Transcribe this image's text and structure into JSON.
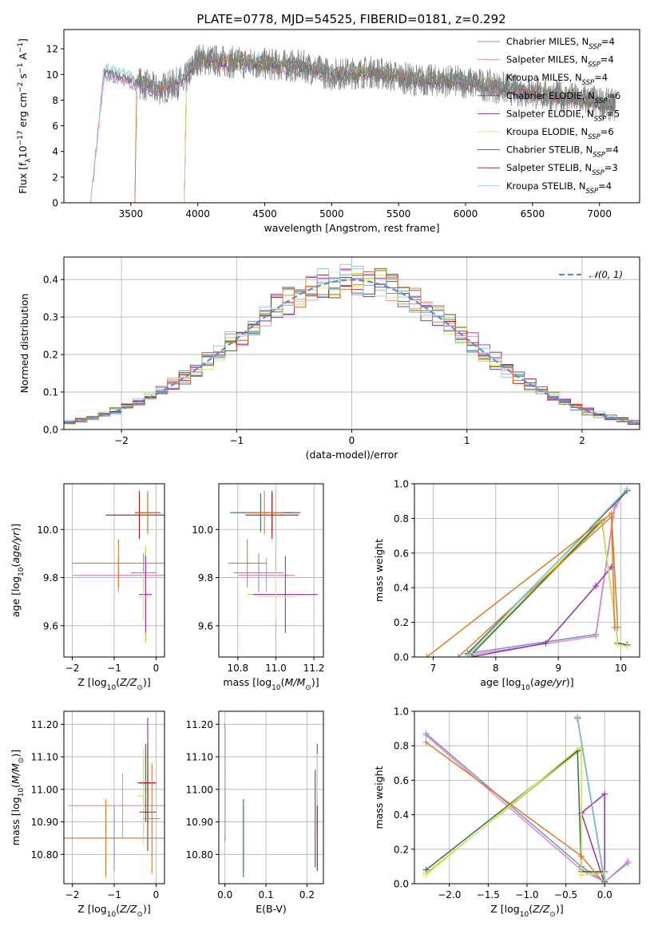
{
  "colors": {
    "series": [
      "#6f93d9",
      "#ee82b4",
      "#b8c93a",
      "#2d6e58",
      "#9a2bb8",
      "#e2e86b",
      "#555555",
      "#aa1515",
      "#7fd1e6"
    ],
    "bright_for_markers": [
      "#6f93d9",
      "#ee82b4",
      "#b8c93a",
      "#2d6e58",
      "#9a2bb8",
      "#e2e86b",
      "#555555",
      "#aa1515",
      "#7fd1e6"
    ],
    "orange": "#e07a28",
    "gaussian": "#5b8ad6"
  },
  "legend": [
    {
      "label": "Chabrier MILES, N",
      "sub": "SSP",
      "tail": "=4"
    },
    {
      "label": "Salpeter MILES, N",
      "sub": "SSP",
      "tail": "=4"
    },
    {
      "label": "Kroupa MILES, N",
      "sub": "SSP",
      "tail": "=4"
    },
    {
      "label": "Chabrier ELODIE, N",
      "sub": "SSP",
      "tail": "=6"
    },
    {
      "label": "Salpeter ELODIE, N",
      "sub": "SSP",
      "tail": "=5"
    },
    {
      "label": "Kroupa ELODIE, N",
      "sub": "SSP",
      "tail": "=6"
    },
    {
      "label": "Chabrier STELIB, N",
      "sub": "SSP",
      "tail": "=4"
    },
    {
      "label": "Salpeter STELIB, N",
      "sub": "SSP",
      "tail": "=3"
    },
    {
      "label": "Kroupa STELIB, N",
      "sub": "SSP",
      "tail": "=4"
    }
  ],
  "chart_data": [
    {
      "id": "spectrum",
      "type": "line",
      "title": "PLATE=0778, MJD=54525, FIBERID=0181, z=0.292",
      "xlabel": "wavelength [Angstrom, rest frame]",
      "ylabel": "Flux [f",
      "xlim": [
        3000,
        7300
      ],
      "ylim": [
        0,
        13.5
      ],
      "xticks": [
        3500,
        4000,
        4500,
        5000,
        5500,
        6000,
        6500,
        7000
      ],
      "yticks": [
        0,
        2,
        4,
        6,
        8,
        10,
        12
      ],
      "grid": false,
      "legend_position": "top-right",
      "data_envelope": {
        "x": [
          3200,
          3300,
          3500,
          3700,
          3900,
          4000,
          4200,
          4500,
          4800,
          5000,
          5300,
          5600,
          6000,
          6300,
          6600,
          6900,
          7100
        ],
        "y": [
          0.0,
          10.2,
          9.6,
          8.8,
          9.5,
          11.2,
          11.0,
          10.8,
          10.6,
          10.0,
          10.2,
          9.6,
          9.4,
          8.9,
          8.4,
          8.0,
          7.6
        ]
      }
    },
    {
      "id": "residuals",
      "type": "histogram",
      "xlabel": "(data-model)/error",
      "ylabel": "Normed distribution",
      "xlim": [
        -2.5,
        2.5
      ],
      "ylim": [
        0,
        0.46
      ],
      "xticks": [
        -2,
        -1,
        0,
        1,
        2
      ],
      "yticks": [
        0.0,
        0.1,
        0.2,
        0.3,
        0.4
      ],
      "grid": true,
      "legend": "𝒩(0, 1)",
      "legend_position": "top-right"
    },
    {
      "id": "age_vs_Z",
      "type": "errorbar",
      "xlabel": "Z [log",
      "ylabel": "age  [log",
      "xlim": [
        -2.2,
        0.2
      ],
      "ylim": [
        9.47,
        10.19
      ],
      "xticks": [
        -2,
        -1,
        0
      ],
      "yticks": [
        9.6,
        9.8,
        10.0
      ],
      "grid": true,
      "points": [
        {
          "x": -0.3,
          "xerr": 0.3,
          "y": 9.82,
          "yerr": 0.08
        },
        {
          "x": -0.9,
          "xerr": 1.1,
          "y": 9.81,
          "yerr": 0.07
        },
        {
          "x": -0.25,
          "xerr": 0.15,
          "y": 9.73,
          "yerr": 0.2
        },
        {
          "x": -0.2,
          "xerr": 0.3,
          "y": 10.07,
          "yerr": 0.08
        },
        {
          "x": -0.25,
          "xerr": 0.15,
          "y": 9.73,
          "yerr": 0.16
        },
        {
          "x": -0.3,
          "xerr": 0.15,
          "y": 9.72,
          "yerr": 0.1
        },
        {
          "x": -0.2,
          "xerr": 0.3,
          "y": 10.07,
          "yerr": 0.08
        },
        {
          "x": -0.4,
          "xerr": 0.8,
          "y": 10.06,
          "yerr": 0.1
        },
        {
          "x": -0.9,
          "xerr": 1.1,
          "y": 9.86,
          "yerr": 0.1
        },
        {
          "x": -0.2,
          "xerr": 0.3,
          "y": 10.07,
          "yerr": 0.09
        }
      ]
    },
    {
      "id": "age_vs_mass",
      "type": "errorbar",
      "xlabel": "mass [log",
      "ylabel": "",
      "xlim": [
        10.7,
        11.25
      ],
      "ylim": [
        9.47,
        10.19
      ],
      "xticks": [
        10.8,
        11.0,
        11.2
      ],
      "yticks": [
        9.6,
        9.8,
        10.0
      ],
      "grid": true,
      "points": [
        {
          "x": 10.91,
          "xerr": 0.13,
          "y": 9.82,
          "yerr": 0.08
        },
        {
          "x": 10.95,
          "xerr": 0.15,
          "y": 9.81,
          "yerr": 0.07
        },
        {
          "x": 11.0,
          "xerr": 0.15,
          "y": 9.73,
          "yerr": 0.2
        },
        {
          "x": 10.92,
          "xerr": 0.16,
          "y": 10.07,
          "yerr": 0.08
        },
        {
          "x": 11.05,
          "xerr": 0.17,
          "y": 9.73,
          "yerr": 0.16
        },
        {
          "x": 11.0,
          "xerr": 0.1,
          "y": 9.72,
          "yerr": 0.1
        },
        {
          "x": 10.98,
          "xerr": 0.15,
          "y": 10.07,
          "yerr": 0.08
        },
        {
          "x": 10.98,
          "xerr": 0.14,
          "y": 10.06,
          "yerr": 0.1
        },
        {
          "x": 10.85,
          "xerr": 0.1,
          "y": 9.86,
          "yerr": 0.1
        },
        {
          "x": 10.94,
          "xerr": 0.1,
          "y": 10.07,
          "yerr": 0.09
        }
      ]
    },
    {
      "id": "weight_vs_age",
      "type": "line",
      "xlabel": "age  [log",
      "ylabel": "mass weight",
      "xlim": [
        6.7,
        10.3
      ],
      "ylim": [
        0,
        1.0
      ],
      "xticks": [
        7,
        8,
        9,
        10
      ],
      "yticks": [
        0.0,
        0.2,
        0.4,
        0.6,
        0.8,
        1.0
      ],
      "grid": true,
      "series": [
        {
          "x": [
            7.55,
            9.6,
            9.9,
            10.1
          ],
          "y": [
            0.02,
            0.13,
            0.87,
            0.96
          ]
        },
        {
          "x": [
            7.55,
            9.6,
            9.9,
            10.1
          ],
          "y": [
            0.01,
            0.12,
            0.86,
            0.97
          ]
        },
        {
          "x": [
            7.6,
            9.7,
            9.95,
            10.1
          ],
          "y": [
            0.01,
            0.78,
            0.08,
            0.07
          ]
        },
        {
          "x": [
            7.6,
            9.7,
            9.95,
            10.1
          ],
          "y": [
            0.01,
            0.79,
            0.08,
            0.07
          ]
        },
        {
          "x": [
            7.6,
            8.8,
            9.6,
            9.85
          ],
          "y": [
            0.0,
            0.08,
            0.41,
            0.52
          ]
        },
        {
          "x": [
            7.6,
            9.7,
            9.95,
            10.1
          ],
          "y": [
            0.02,
            0.8,
            0.07,
            0.06
          ]
        },
        {
          "x": [
            7.55,
            10.1
          ],
          "y": [
            0.02,
            0.96
          ]
        },
        {
          "x": [
            7.4,
            9.85,
            9.9
          ],
          "y": [
            0.0,
            0.81,
            0.17
          ]
        },
        {
          "x": [
            7.55,
            10.1
          ],
          "y": [
            0.01,
            0.97
          ]
        },
        {
          "x": [
            6.9,
            9.85,
            9.95
          ],
          "y": [
            0.0,
            0.83,
            0.17
          ]
        }
      ]
    },
    {
      "id": "mass_vs_Z",
      "type": "errorbar",
      "xlabel": "Z [log",
      "ylabel": "mass [log",
      "xlim": [
        -2.2,
        0.2
      ],
      "ylim": [
        10.71,
        11.24
      ],
      "xticks": [
        -2,
        -1,
        0
      ],
      "yticks": [
        10.8,
        10.9,
        11.0,
        11.1,
        11.2
      ],
      "grid": true,
      "points": [
        {
          "x": -1.0,
          "xerr": 1.2,
          "y": 10.85,
          "yerr": 0.1
        },
        {
          "x": -0.8,
          "xerr": 1.3,
          "y": 10.95,
          "yerr": 0.1
        },
        {
          "x": -0.3,
          "xerr": 0.15,
          "y": 10.98,
          "yerr": 0.12
        },
        {
          "x": -0.25,
          "xerr": 0.2,
          "y": 11.02,
          "yerr": 0.12
        },
        {
          "x": -0.2,
          "xerr": 0.2,
          "y": 11.02,
          "yerr": 0.2
        },
        {
          "x": -0.3,
          "xerr": 0.15,
          "y": 10.98,
          "yerr": 0.15
        },
        {
          "x": -0.2,
          "xerr": 0.2,
          "y": 10.93,
          "yerr": 0.12
        },
        {
          "x": -0.2,
          "xerr": 0.2,
          "y": 11.02,
          "yerr": 0.12
        },
        {
          "x": -1.2,
          "xerr": 1.0,
          "y": 10.85,
          "yerr": 0.12
        },
        {
          "x": -0.1,
          "xerr": 0.2,
          "y": 10.91,
          "yerr": 0.17
        }
      ]
    },
    {
      "id": "mass_vs_ebv",
      "type": "errorbar",
      "xlabel": "E(B-V)",
      "ylabel": "",
      "xlim": [
        -0.015,
        0.24
      ],
      "ylim": [
        10.71,
        11.24
      ],
      "xticks": [
        0.0,
        0.1,
        0.2
      ],
      "yticks": [
        10.8,
        10.9,
        11.0,
        11.1,
        11.2
      ],
      "grid": true,
      "points": [
        {
          "x": 0.0,
          "y": 11.02,
          "yerr": 0.18
        },
        {
          "x": 0.0,
          "y": 11.02,
          "yerr": 0.17
        },
        {
          "x": 0.045,
          "y": 10.85,
          "yerr": 0.1
        },
        {
          "x": 0.045,
          "y": 10.85,
          "yerr": 0.12
        },
        {
          "x": 0.225,
          "y": 11.0,
          "yerr": 0.14
        },
        {
          "x": 0.225,
          "y": 10.93,
          "yerr": 0.18
        },
        {
          "x": 0.22,
          "y": 10.91,
          "yerr": 0.15
        },
        {
          "x": 0.225,
          "y": 10.85,
          "yerr": 0.1
        }
      ]
    },
    {
      "id": "weight_vs_Z",
      "type": "line",
      "xlabel": "Z [log",
      "ylabel": "mass weight",
      "xlim": [
        -2.45,
        0.45
      ],
      "ylim": [
        0,
        1.0
      ],
      "xticks": [
        -2.0,
        -1.5,
        -1.0,
        -0.5,
        0.0
      ],
      "yticks": [
        0.0,
        0.2,
        0.4,
        0.6,
        0.8,
        1.0
      ],
      "grid": true,
      "series": [
        {
          "x": [
            -2.3,
            -0.3,
            0.0,
            0.3
          ],
          "y": [
            0.87,
            0.1,
            0.01,
            0.12
          ]
        },
        {
          "x": [
            -2.3,
            -0.3,
            0.0,
            0.3
          ],
          "y": [
            0.86,
            0.08,
            0.01,
            0.13
          ]
        },
        {
          "x": [
            -2.3,
            -0.3,
            -0.3,
            0.0
          ],
          "y": [
            0.06,
            0.78,
            0.05,
            0.07
          ]
        },
        {
          "x": [
            -2.3,
            -0.35,
            -0.3,
            0.0
          ],
          "y": [
            0.08,
            0.77,
            0.07,
            0.07
          ]
        },
        {
          "x": [
            0.0,
            0.0,
            -0.3,
            0.0
          ],
          "y": [
            0.0,
            0.52,
            0.41,
            0.0
          ]
        },
        {
          "x": [
            -2.3,
            -0.3,
            -0.3,
            0.0
          ],
          "y": [
            0.05,
            0.8,
            0.05,
            0.06
          ]
        },
        {
          "x": [
            -0.35,
            0.0
          ],
          "y": [
            0.96,
            0.01
          ]
        },
        {
          "x": [
            -2.3,
            -0.3,
            0.0
          ],
          "y": [
            0.82,
            0.16,
            0.0
          ]
        },
        {
          "x": [
            -0.35,
            0.0
          ],
          "y": [
            0.97,
            0.02
          ]
        }
      ]
    }
  ]
}
